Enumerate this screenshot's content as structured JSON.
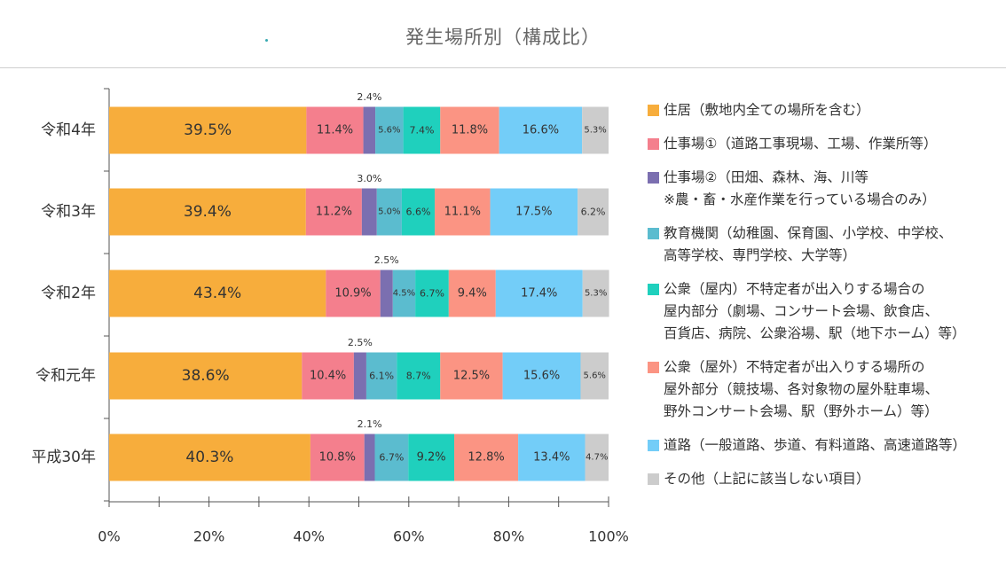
{
  "title": "発生場所別（構成比）",
  "accent_color": "#37a9b1",
  "chart_data": {
    "type": "bar",
    "orientation": "horizontal",
    "stacked": true,
    "title": "発生場所別（構成比）",
    "categories": [
      "令和4年",
      "令和3年",
      "令和2年",
      "令和元年",
      "平成30年"
    ],
    "series": [
      {
        "name": "住居（敷地内全ての場所を含む）",
        "color": "#f7ad3c",
        "values": [
          39.5,
          39.4,
          43.4,
          38.6,
          40.3
        ],
        "labels": [
          "39.5%",
          "39.4%",
          "43.4%",
          "38.6%",
          "40.3%"
        ]
      },
      {
        "name": "仕事場①（道路工事現場、工場、作業所等）",
        "color": "#f47f8d",
        "values": [
          11.4,
          11.2,
          10.9,
          10.4,
          10.8
        ],
        "labels": [
          "11.4%",
          "11.2%",
          "10.9%",
          "10.4%",
          "10.8%"
        ]
      },
      {
        "name": "仕事場②（田畑、森林、海、川等\n※農・畜・水産作業を行っている場合のみ）",
        "color": "#7b6fb0",
        "values": [
          2.4,
          3.0,
          2.5,
          2.5,
          2.1
        ],
        "labels": [
          "2.4%",
          "3.0%",
          "2.5%",
          "2.5%",
          "2.1%"
        ]
      },
      {
        "name": "教育機関（幼稚園、保育園、小学校、中学校、\n高等学校、専門学校、大学等）",
        "color": "#5bbccf",
        "values": [
          5.6,
          5.0,
          4.5,
          6.1,
          6.7
        ],
        "labels": [
          "5.6%",
          "5.0%",
          "4.5%",
          "6.1%",
          "6.7%"
        ]
      },
      {
        "name": "公衆（屋内）不特定者が出入りする場合の\n屋内部分（劇場、コンサート会場、飲食店、\n百貨店、病院、公衆浴場、駅（地下ホーム）等）",
        "color": "#1fd0bd",
        "values": [
          7.4,
          6.6,
          6.7,
          8.7,
          9.2
        ],
        "labels": [
          "7.4%",
          "6.6%",
          "6.7%",
          "8.7%",
          "9.2%"
        ]
      },
      {
        "name": "公衆（屋外）不特定者が出入りする場所の\n屋外部分（競技場、各対象物の屋外駐車場、\n野外コンサート会場、駅（野外ホーム）等）",
        "color": "#fb9483",
        "values": [
          11.8,
          11.1,
          9.4,
          12.5,
          12.8
        ],
        "labels": [
          "11.8%",
          "11.1%",
          "9.4%",
          "12.5%",
          "12.8%"
        ]
      },
      {
        "name": "道路（一般道路、歩道、有料道路、高速道路等）",
        "color": "#73cdf8",
        "values": [
          16.6,
          17.5,
          17.4,
          15.6,
          13.4
        ],
        "labels": [
          "16.6%",
          "17.5%",
          "17.4%",
          "15.6%",
          "13.4%"
        ]
      },
      {
        "name": "その他（上記に該当しない項目）",
        "color": "#cccccc",
        "values": [
          5.3,
          6.2,
          5.3,
          5.6,
          4.7
        ],
        "labels": [
          "5.3%",
          "6.2%",
          "5.3%",
          "5.6%",
          "4.7%"
        ]
      }
    ],
    "xlim": [
      0,
      100
    ],
    "x_ticks": [
      "0%",
      "20%",
      "40%",
      "60%",
      "80%",
      "100%"
    ],
    "xlabel": "",
    "ylabel": "",
    "legend_position": "right",
    "grid": false
  }
}
